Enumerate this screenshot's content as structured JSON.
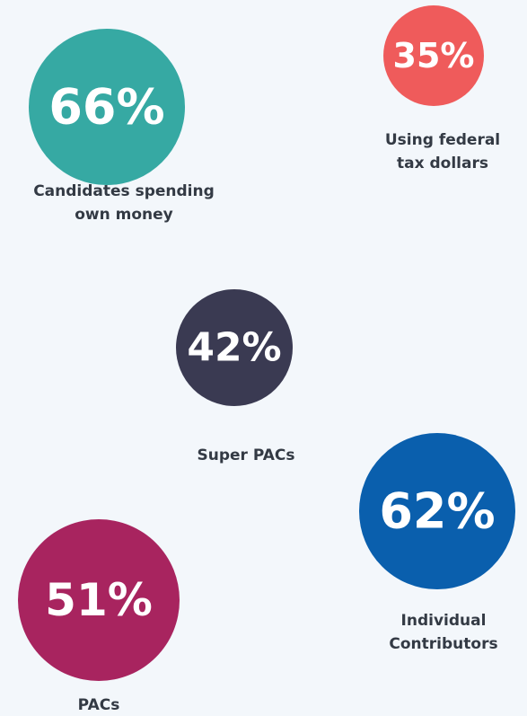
{
  "items": [
    {
      "value": "66%",
      "label": [
        "Candidates spending",
        "own money"
      ],
      "color": "#36a9a3"
    },
    {
      "value": "35%",
      "label": [
        "Using federal",
        "tax dollars"
      ],
      "color": "#ef5b5b"
    },
    {
      "value": "42%",
      "label": [
        "Super PACs"
      ],
      "color": "#3a3a52"
    },
    {
      "value": "62%",
      "label": [
        "Individual",
        "Contributors"
      ],
      "color": "#0a5fad"
    },
    {
      "value": "51%",
      "label": [
        "PACs"
      ],
      "color": "#a8245f"
    }
  ]
}
